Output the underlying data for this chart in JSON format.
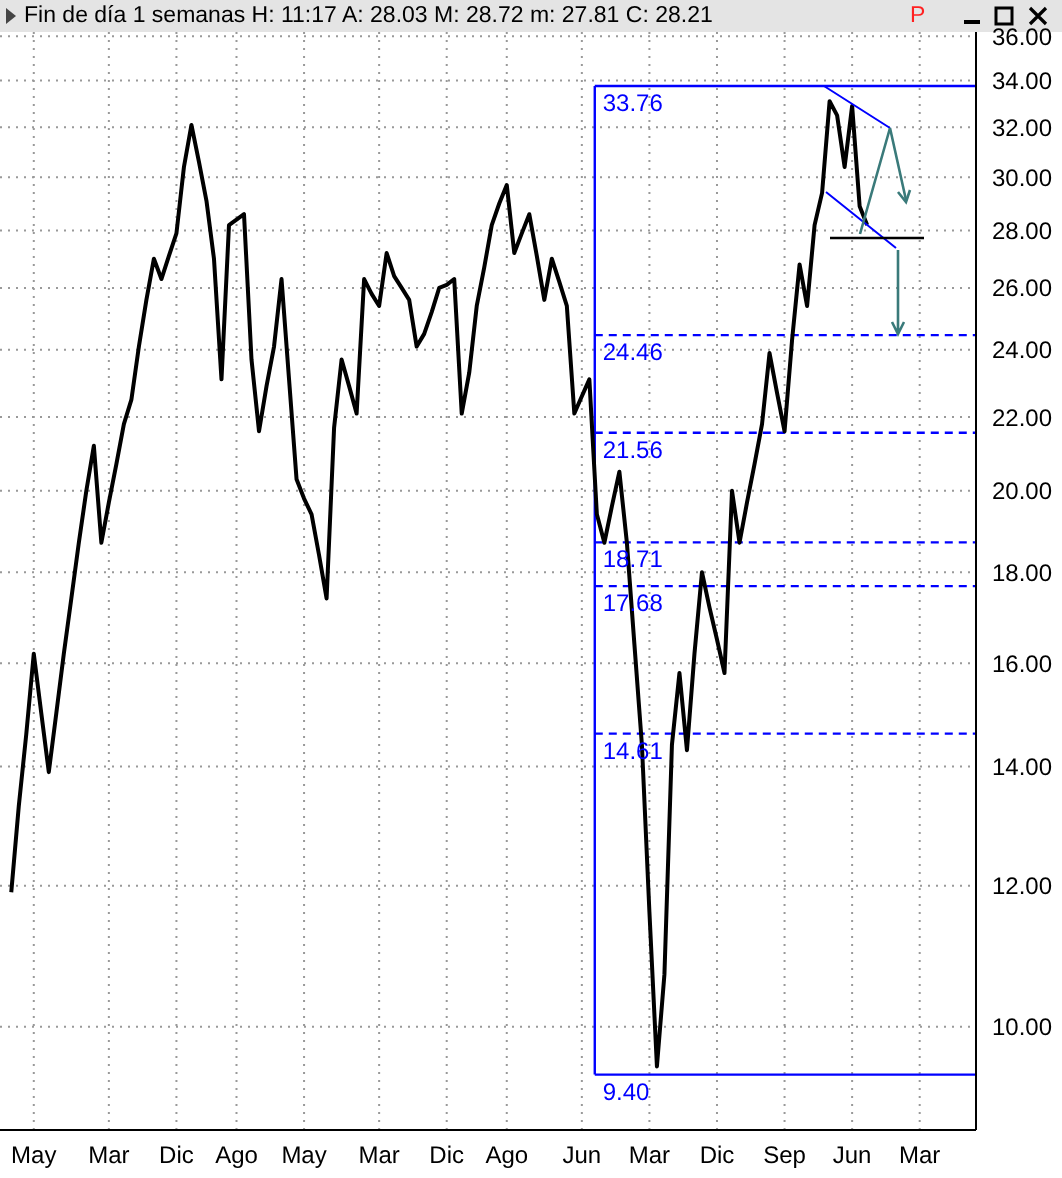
{
  "chart_data": {
    "type": "line",
    "title": "Fin de día 1 semanas  H: 11:17  A: 28.03  M: 28.72  m: 27.81  C: 28.21",
    "annotations": [
      "P"
    ],
    "categories": [
      null,
      null,
      null,
      null,
      "May",
      null,
      null,
      null,
      null,
      null,
      null,
      null,
      null,
      null,
      "Mar",
      null,
      null,
      null,
      null,
      null,
      null,
      null,
      null,
      "Dic",
      null,
      null,
      null,
      null,
      null,
      null,
      null,
      "Ago",
      null,
      null,
      null,
      null,
      null,
      null,
      null,
      null,
      "May",
      null,
      null,
      null,
      null,
      null,
      null,
      null,
      null,
      null,
      "Mar",
      null,
      null,
      null,
      null,
      null,
      null,
      null,
      null,
      "Dic",
      null,
      null,
      null,
      null,
      null,
      null,
      null,
      "Ago",
      null,
      null,
      null,
      null,
      null,
      null,
      null,
      null,
      null,
      "Jun",
      null,
      null,
      null,
      null,
      null,
      null,
      null,
      null,
      "Mar",
      null,
      null,
      null,
      null,
      null,
      null,
      null,
      null,
      "Dic",
      null,
      null,
      null,
      null,
      null,
      null,
      null,
      null,
      "Sep",
      null,
      null,
      null,
      null,
      null,
      null,
      null,
      null,
      "Jun",
      null,
      null,
      null,
      null,
      null,
      null,
      null,
      null,
      "Mar",
      null,
      null,
      null,
      null,
      null,
      null,
      null
    ],
    "series": [
      {
        "color": "#000000",
        "values": [
          null,
          11.9,
          13.3,
          14.6,
          16.2,
          15.0,
          13.9,
          15.0,
          16.2,
          17.4,
          18.7,
          20.0,
          21.2,
          18.7,
          19.7,
          20.7,
          21.8,
          22.5,
          24.1,
          25.6,
          27.0,
          26.3,
          27.1,
          27.9,
          30.4,
          32.1,
          30.6,
          29.1,
          27.0,
          23.1,
          28.2,
          28.4,
          28.6,
          23.7,
          21.6,
          22.9,
          24.1,
          26.3,
          23.1,
          20.3,
          19.8,
          19.4,
          18.4,
          17.4,
          21.7,
          23.7,
          22.9,
          22.1,
          26.3,
          25.8,
          25.4,
          27.2,
          26.4,
          26.0,
          25.6,
          24.1,
          24.5,
          25.2,
          26.0,
          26.1,
          26.3,
          22.1,
          23.3,
          25.4,
          26.7,
          28.2,
          29.0,
          29.7,
          27.2,
          27.9,
          28.6,
          27.1,
          25.6,
          27.0,
          26.2,
          25.4,
          22.1,
          22.6,
          23.1,
          19.4,
          18.7,
          19.6,
          20.5,
          18.7,
          16.4,
          14.4,
          11.6,
          9.5,
          10.7,
          14.4,
          15.8,
          14.3,
          16.2,
          18.0,
          17.2,
          16.5,
          15.8,
          20.0,
          18.7,
          19.7,
          20.7,
          21.8,
          23.9,
          22.7,
          21.6,
          24.3,
          26.8,
          25.4,
          28.2,
          29.4,
          33.1,
          32.5,
          30.4,
          32.9,
          28.9,
          28.2,
          null,
          null,
          null,
          null,
          null,
          null,
          null,
          null,
          null,
          null,
          null,
          null,
          null,
          null
        ]
      }
    ],
    "ylim": [
      8.75,
      36.2
    ],
    "yticks": [
      {
        "value": 10,
        "label": "10.00"
      },
      {
        "value": 12,
        "label": "12.00"
      },
      {
        "value": 14,
        "label": "14.00"
      },
      {
        "value": 16,
        "label": "16.00"
      },
      {
        "value": 18,
        "label": "18.00"
      },
      {
        "value": 20,
        "label": "20.00"
      },
      {
        "value": 22,
        "label": "22.00"
      },
      {
        "value": 24,
        "label": "24.00"
      },
      {
        "value": 26,
        "label": "26.00"
      },
      {
        "value": 28,
        "label": "28.00"
      },
      {
        "value": 30,
        "label": "30.00"
      },
      {
        "value": 32,
        "label": "32.00"
      },
      {
        "value": 34,
        "label": "34.00"
      },
      {
        "value": 36,
        "label": "36.00"
      }
    ],
    "log": "y",
    "grid": true,
    "marker": "none",
    "line_style": "solid",
    "ref_lines": [
      {
        "axis": "y",
        "value": 33.76,
        "label": "33.76",
        "color": "#0000ff",
        "line_style": "solid"
      },
      {
        "axis": "y",
        "value": 24.46,
        "label": "24.46",
        "color": "#0000ff",
        "line_style": "dashed"
      },
      {
        "axis": "y",
        "value": 21.56,
        "label": "21.56",
        "color": "#0000ff",
        "line_style": "dashed"
      },
      {
        "axis": "y",
        "value": 18.71,
        "label": "18.71",
        "color": "#0000ff",
        "line_style": "dashed"
      },
      {
        "axis": "y",
        "value": 17.68,
        "label": "17.68",
        "color": "#0000ff",
        "line_style": "dashed"
      },
      {
        "axis": "y",
        "value": 14.61,
        "label": "14.61",
        "color": "#0000ff",
        "line_style": "dashed"
      },
      {
        "axis": "y",
        "value": 9.4,
        "label": "9.40",
        "color": "#0000ff",
        "line_style": "solid"
      }
    ]
  }
}
